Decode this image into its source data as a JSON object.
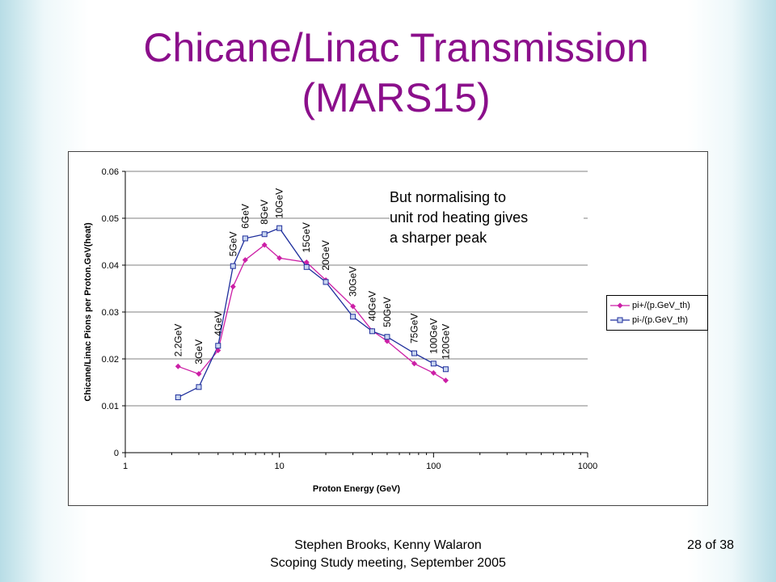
{
  "slide": {
    "title_line1": "Chicane/Linac Transmission",
    "title_line2": "(MARS15)",
    "annotation_line1": "But normalising to",
    "annotation_line2": "unit rod heating gives",
    "annotation_line3": "a sharper peak",
    "footer_line1": "Stephen Brooks, Kenny Walaron",
    "footer_line2": "Scoping Study meeting, September 2005",
    "page_number": "28 of 38",
    "title_color": "#8b0f8b"
  },
  "chart_data": {
    "type": "line",
    "xscale": "log",
    "xlim": [
      1,
      1000
    ],
    "ylim": [
      0,
      0.06
    ],
    "xticks": [
      1,
      10,
      100,
      1000
    ],
    "xtick_labels": [
      "1",
      "10",
      "100",
      "1000"
    ],
    "yticks": [
      0,
      0.01,
      0.02,
      0.03,
      0.04,
      0.05,
      0.06
    ],
    "ytick_labels": [
      "0",
      "0.01",
      "0.02",
      "0.03",
      "0.04",
      "0.05",
      "0.06"
    ],
    "xlabel": "Proton Energy (GeV)",
    "ylabel": "Chicane/Linac Pions per Proton.GeV(heat)",
    "grid": "horizontal",
    "legend_position": "right",
    "x": [
      2.2,
      3,
      4,
      5,
      6,
      8,
      10,
      15,
      20,
      30,
      40,
      50,
      75,
      100,
      120
    ],
    "point_labels": [
      "2.2GeV",
      "3GeV",
      "4GeV",
      "5GeV",
      "6GeV",
      "8GeV",
      "10GeV",
      "15GeV",
      "20GeV",
      "30GeV",
      "40GeV",
      "50GeV",
      "75GeV",
      "100GeV",
      "120GeV"
    ],
    "series": [
      {
        "name": "pi+/(p.GeV_th)",
        "color": "#cc1fa6",
        "marker": "diamond",
        "values": [
          0.0184,
          0.0168,
          0.0218,
          0.0354,
          0.0411,
          0.0443,
          0.0415,
          0.0406,
          0.0368,
          0.0312,
          0.026,
          0.0238,
          0.019,
          0.017,
          0.0154
        ]
      },
      {
        "name": "pi-/(p.GeV_th)",
        "color": "#1e2e9c",
        "marker": "square",
        "values": [
          0.0118,
          0.014,
          0.0228,
          0.0398,
          0.0457,
          0.0466,
          0.0479,
          0.0396,
          0.0364,
          0.029,
          0.0259,
          0.0247,
          0.0212,
          0.019,
          0.0178
        ]
      }
    ]
  }
}
